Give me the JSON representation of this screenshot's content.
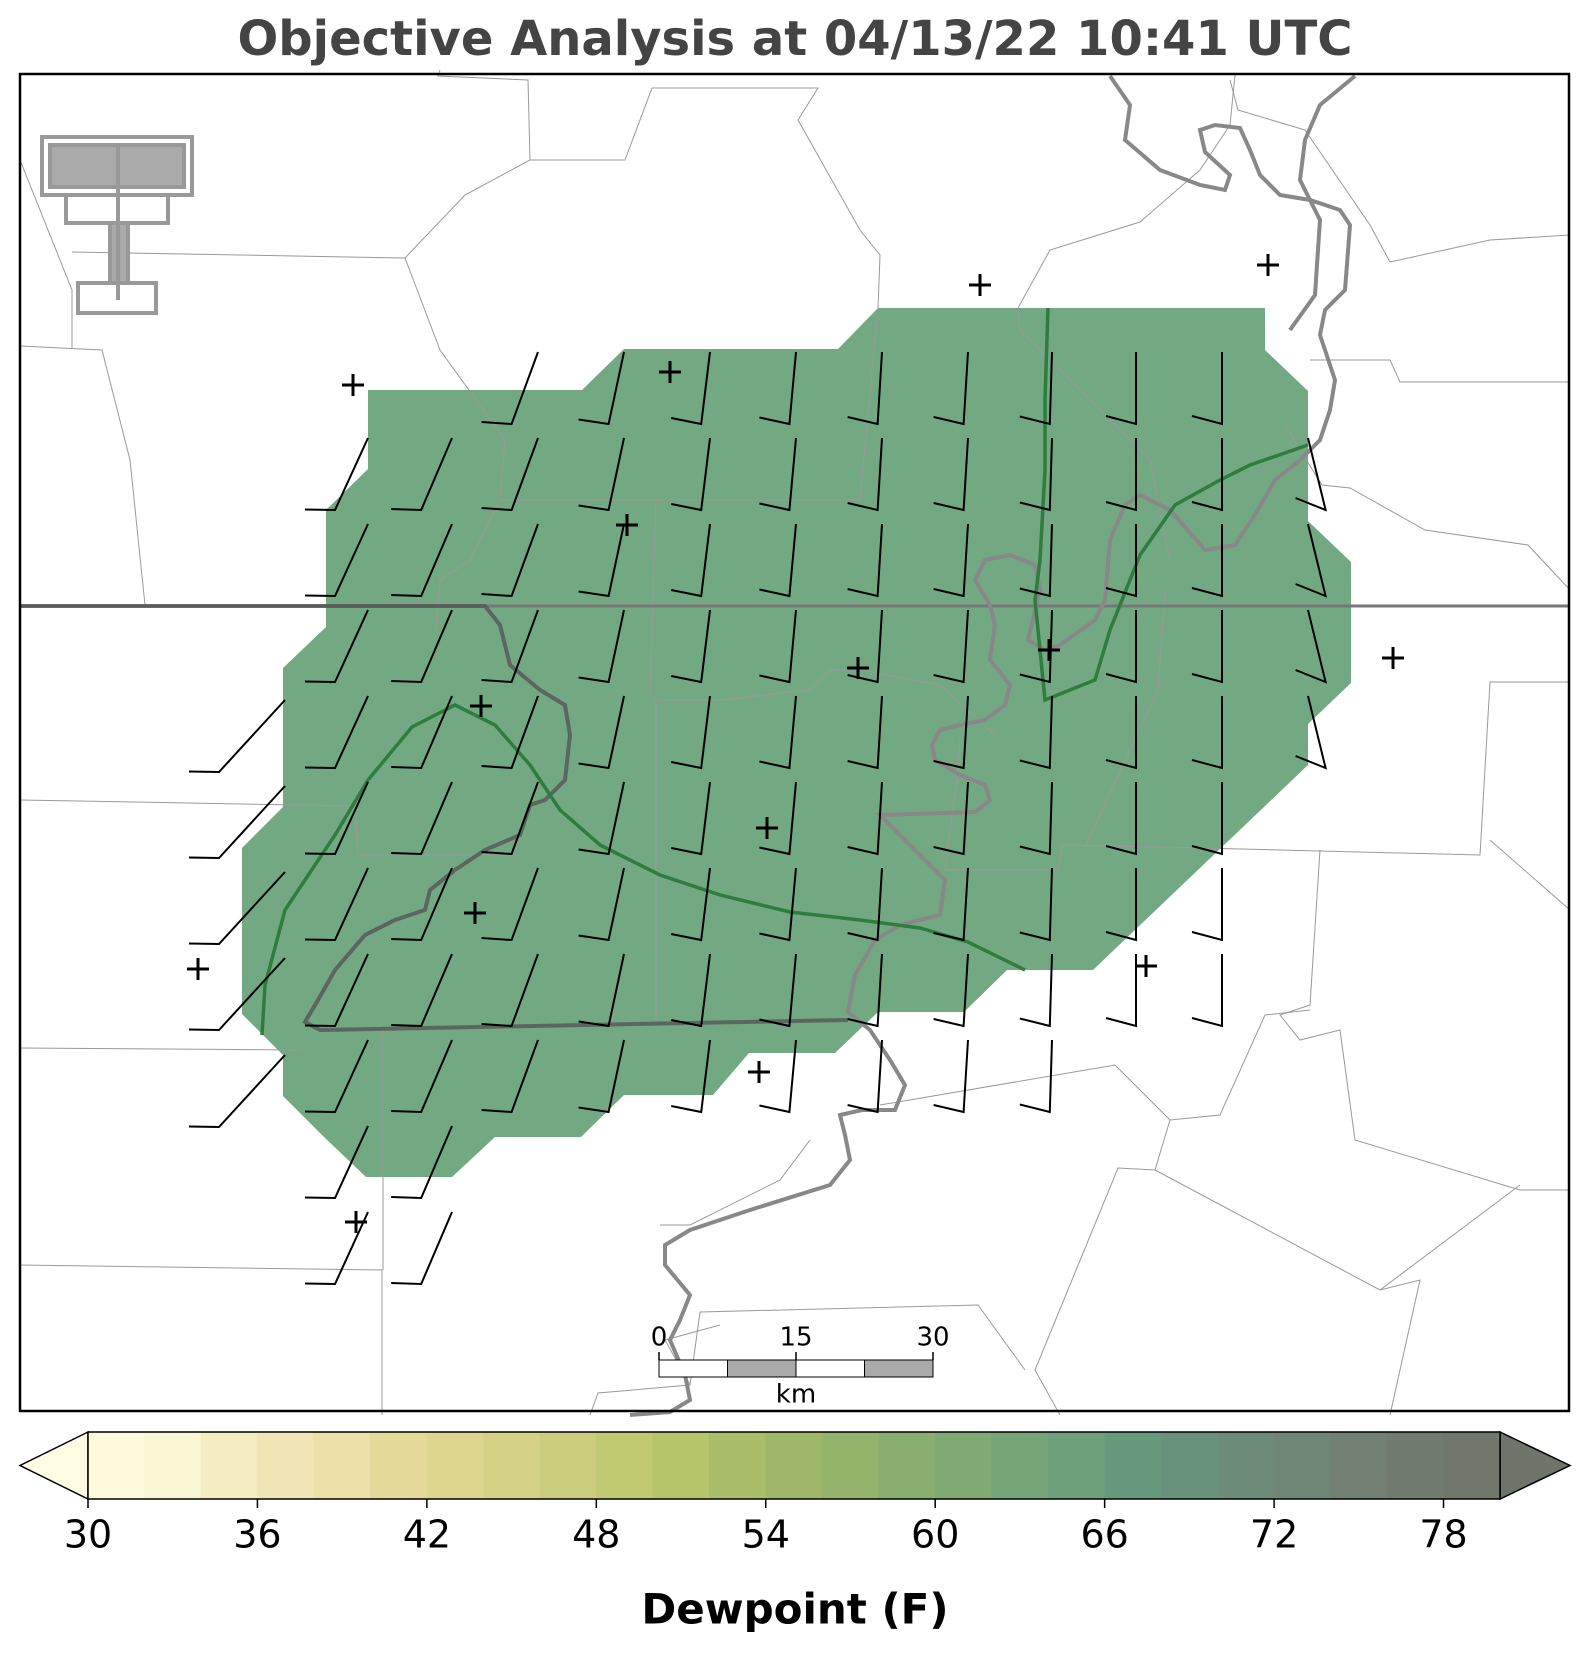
{
  "title": "Objective Analysis at 04/13/22 10:41 UTC",
  "colorbar": {
    "label": "Dewpoint (F)",
    "levels": [
      30,
      32,
      34,
      36,
      38,
      40,
      42,
      44,
      46,
      48,
      50,
      52,
      54,
      56,
      58,
      60,
      62,
      64,
      66,
      68,
      70,
      72,
      74,
      76,
      78,
      80
    ],
    "colors": [
      "#fdfbdc",
      "#faf5d2",
      "#f5edc2",
      "#f0e6b5",
      "#ebe0a7",
      "#e6da9b",
      "#ddd68e",
      "#d5d185",
      "#cccd7c",
      "#c2c973",
      "#b6c46b",
      "#aabd68",
      "#9fb768",
      "#94b36b",
      "#89af70",
      "#7faa74",
      "#76a578",
      "#6ea07b",
      "#66997c",
      "#68927b",
      "#6c8b79",
      "#6f8676",
      "#718073",
      "#727b6f",
      "#71776b"
    ],
    "under_color": "#fefde4",
    "over_color": "#6e7469",
    "ticks": [
      30,
      36,
      42,
      48,
      54,
      60,
      66,
      72,
      78
    ]
  },
  "scale_bar": {
    "ticks": [
      0,
      15,
      30
    ],
    "unit": "km"
  }
}
